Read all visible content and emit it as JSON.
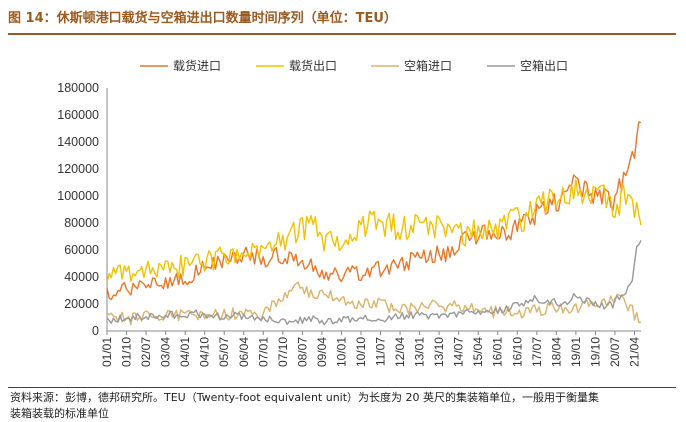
{
  "title": "图 14：休斯顿港口载货与空箱进出口数量时间序列（单位：TEU）",
  "footnote_line1": "资料来源：彭博，德邦研究所。TEU（Twenty-foot equivalent unit）为长度为 20 英尺的集装箱单位，一般用于衡量集",
  "footnote_line2": "装箱装载的标准单位",
  "colors": {
    "title": "#9c5a1f",
    "laden_import": "#e8772a",
    "laden_export": "#f2c200",
    "empty_import": "#d9b46a",
    "empty_export": "#999999"
  },
  "chart_data": {
    "type": "line",
    "title": "",
    "xlabel": "",
    "ylabel": "",
    "ylim": [
      0,
      180000
    ],
    "yticks": [
      "0",
      "20000",
      "40000",
      "60000",
      "80000",
      "100000",
      "120000",
      "140000",
      "160000",
      "180000"
    ],
    "xticks": [
      "01/01",
      "01/10",
      "02/07",
      "03/04",
      "04/01",
      "04/10",
      "05/07",
      "06/04",
      "07/01",
      "07/10",
      "08/07",
      "09/04",
      "10/01",
      "10/10",
      "11/07",
      "12/04",
      "13/01",
      "13/10",
      "14/07",
      "15/04",
      "16/01",
      "16/10",
      "17/07",
      "18/04",
      "19/01",
      "19/10",
      "20/07",
      "21/04"
    ],
    "x_range": [
      "2001-01",
      "2021-07"
    ],
    "legend_position": "top",
    "grid": false,
    "series": [
      {
        "name": "载货进口",
        "color": "#e8772a",
        "points": [
          [
            "2001-01",
            27000
          ],
          [
            "2001-06",
            31000
          ],
          [
            "2001-12",
            30000
          ],
          [
            "2002-06",
            33000
          ],
          [
            "2002-12",
            34000
          ],
          [
            "2003-06",
            37000
          ],
          [
            "2003-12",
            38000
          ],
          [
            "2004-06",
            44000
          ],
          [
            "2004-12",
            47000
          ],
          [
            "2005-06",
            53000
          ],
          [
            "2005-12",
            55000
          ],
          [
            "2006-06",
            57000
          ],
          [
            "2006-12",
            53000
          ],
          [
            "2007-06",
            56000
          ],
          [
            "2007-12",
            52000
          ],
          [
            "2008-06",
            53000
          ],
          [
            "2008-12",
            50000
          ],
          [
            "2009-06",
            40000
          ],
          [
            "2009-12",
            42000
          ],
          [
            "2010-06",
            44000
          ],
          [
            "2010-12",
            40000
          ],
          [
            "2011-06",
            46000
          ],
          [
            "2011-12",
            47000
          ],
          [
            "2012-06",
            50000
          ],
          [
            "2012-12",
            54000
          ],
          [
            "2013-06",
            56000
          ],
          [
            "2013-12",
            57000
          ],
          [
            "2014-06",
            62000
          ],
          [
            "2014-12",
            70000
          ],
          [
            "2015-06",
            72000
          ],
          [
            "2015-12",
            70000
          ],
          [
            "2016-06",
            72000
          ],
          [
            "2016-12",
            78000
          ],
          [
            "2017-06",
            85000
          ],
          [
            "2017-12",
            95000
          ],
          [
            "2018-06",
            97000
          ],
          [
            "2018-12",
            108000
          ],
          [
            "2019-06",
            105000
          ],
          [
            "2019-12",
            100000
          ],
          [
            "2020-06",
            95000
          ],
          [
            "2020-12",
            115000
          ],
          [
            "2021-03",
            130000
          ],
          [
            "2021-05",
            140000
          ],
          [
            "2021-07",
            160000
          ]
        ]
      },
      {
        "name": "载货出口",
        "color": "#f2c200",
        "points": [
          [
            "2001-01",
            38000
          ],
          [
            "2001-06",
            45000
          ],
          [
            "2001-12",
            42000
          ],
          [
            "2002-06",
            44000
          ],
          [
            "2002-12",
            43000
          ],
          [
            "2003-06",
            46000
          ],
          [
            "2003-12",
            48000
          ],
          [
            "2004-06",
            50000
          ],
          [
            "2004-12",
            52000
          ],
          [
            "2005-06",
            55000
          ],
          [
            "2005-12",
            54000
          ],
          [
            "2006-06",
            58000
          ],
          [
            "2006-12",
            60000
          ],
          [
            "2007-06",
            65000
          ],
          [
            "2007-12",
            70000
          ],
          [
            "2008-06",
            75000
          ],
          [
            "2008-12",
            80000
          ],
          [
            "2009-06",
            65000
          ],
          [
            "2009-12",
            68000
          ],
          [
            "2010-06",
            75000
          ],
          [
            "2010-12",
            80000
          ],
          [
            "2011-06",
            80000
          ],
          [
            "2011-12",
            78000
          ],
          [
            "2012-06",
            76000
          ],
          [
            "2012-12",
            78000
          ],
          [
            "2013-06",
            77000
          ],
          [
            "2013-12",
            75000
          ],
          [
            "2014-06",
            70000
          ],
          [
            "2014-12",
            72000
          ],
          [
            "2015-06",
            75000
          ],
          [
            "2015-12",
            74000
          ],
          [
            "2016-06",
            80000
          ],
          [
            "2016-12",
            82000
          ],
          [
            "2017-06",
            90000
          ],
          [
            "2017-12",
            95000
          ],
          [
            "2018-06",
            100000
          ],
          [
            "2018-12",
            105000
          ],
          [
            "2019-06",
            105000
          ],
          [
            "2019-12",
            102000
          ],
          [
            "2020-06",
            92000
          ],
          [
            "2020-12",
            100000
          ],
          [
            "2021-03",
            95000
          ],
          [
            "2021-05",
            85000
          ],
          [
            "2021-07",
            86000
          ]
        ]
      },
      {
        "name": "空箱进口",
        "color": "#d9b46a",
        "points": [
          [
            "2001-01",
            10000
          ],
          [
            "2001-06",
            11000
          ],
          [
            "2001-12",
            9000
          ],
          [
            "2002-06",
            12000
          ],
          [
            "2002-12",
            10000
          ],
          [
            "2003-06",
            11000
          ],
          [
            "2003-12",
            12000
          ],
          [
            "2004-06",
            12000
          ],
          [
            "2004-12",
            14000
          ],
          [
            "2005-06",
            12000
          ],
          [
            "2005-12",
            13000
          ],
          [
            "2006-06",
            15000
          ],
          [
            "2006-12",
            12000
          ],
          [
            "2007-06",
            20000
          ],
          [
            "2007-12",
            27000
          ],
          [
            "2008-06",
            32000
          ],
          [
            "2008-12",
            25000
          ],
          [
            "2009-06",
            28000
          ],
          [
            "2009-12",
            25000
          ],
          [
            "2010-06",
            22000
          ],
          [
            "2010-12",
            20000
          ],
          [
            "2011-06",
            20000
          ],
          [
            "2011-12",
            18000
          ],
          [
            "2012-06",
            16000
          ],
          [
            "2012-12",
            17000
          ],
          [
            "2013-06",
            20000
          ],
          [
            "2013-12",
            18000
          ],
          [
            "2014-06",
            18000
          ],
          [
            "2014-12",
            20000
          ],
          [
            "2015-06",
            15000
          ],
          [
            "2015-12",
            14000
          ],
          [
            "2016-06",
            16000
          ],
          [
            "2016-12",
            14000
          ],
          [
            "2017-06",
            15000
          ],
          [
            "2017-12",
            16000
          ],
          [
            "2018-06",
            18000
          ],
          [
            "2018-12",
            17000
          ],
          [
            "2019-06",
            19000
          ],
          [
            "2019-12",
            18000
          ],
          [
            "2020-06",
            25000
          ],
          [
            "2020-12",
            20000
          ],
          [
            "2021-03",
            15000
          ],
          [
            "2021-05",
            10000
          ],
          [
            "2021-07",
            9000
          ]
        ]
      },
      {
        "name": "空箱出口",
        "color": "#999999",
        "points": [
          [
            "2001-01",
            8000
          ],
          [
            "2001-06",
            9000
          ],
          [
            "2001-12",
            10000
          ],
          [
            "2002-06",
            11000
          ],
          [
            "2002-12",
            10000
          ],
          [
            "2003-06",
            12000
          ],
          [
            "2003-12",
            11000
          ],
          [
            "2004-06",
            13000
          ],
          [
            "2004-12",
            12000
          ],
          [
            "2005-06",
            11000
          ],
          [
            "2005-12",
            12000
          ],
          [
            "2006-06",
            10000
          ],
          [
            "2006-12",
            9000
          ],
          [
            "2007-06",
            8000
          ],
          [
            "2007-12",
            7000
          ],
          [
            "2008-06",
            8000
          ],
          [
            "2008-12",
            9000
          ],
          [
            "2009-06",
            7000
          ],
          [
            "2009-12",
            8000
          ],
          [
            "2010-06",
            9000
          ],
          [
            "2010-12",
            10000
          ],
          [
            "2011-06",
            9000
          ],
          [
            "2011-12",
            10000
          ],
          [
            "2012-06",
            11000
          ],
          [
            "2012-12",
            12000
          ],
          [
            "2013-06",
            11000
          ],
          [
            "2013-12",
            12000
          ],
          [
            "2014-06",
            13000
          ],
          [
            "2014-12",
            14000
          ],
          [
            "2015-06",
            15000
          ],
          [
            "2015-12",
            15000
          ],
          [
            "2016-06",
            17000
          ],
          [
            "2016-12",
            20000
          ],
          [
            "2017-06",
            25000
          ],
          [
            "2017-12",
            22000
          ],
          [
            "2018-06",
            20000
          ],
          [
            "2018-12",
            25000
          ],
          [
            "2019-06",
            22000
          ],
          [
            "2019-12",
            18000
          ],
          [
            "2020-06",
            20000
          ],
          [
            "2020-12",
            30000
          ],
          [
            "2021-03",
            35000
          ],
          [
            "2021-05",
            60000
          ],
          [
            "2021-07",
            67000
          ]
        ]
      }
    ]
  }
}
